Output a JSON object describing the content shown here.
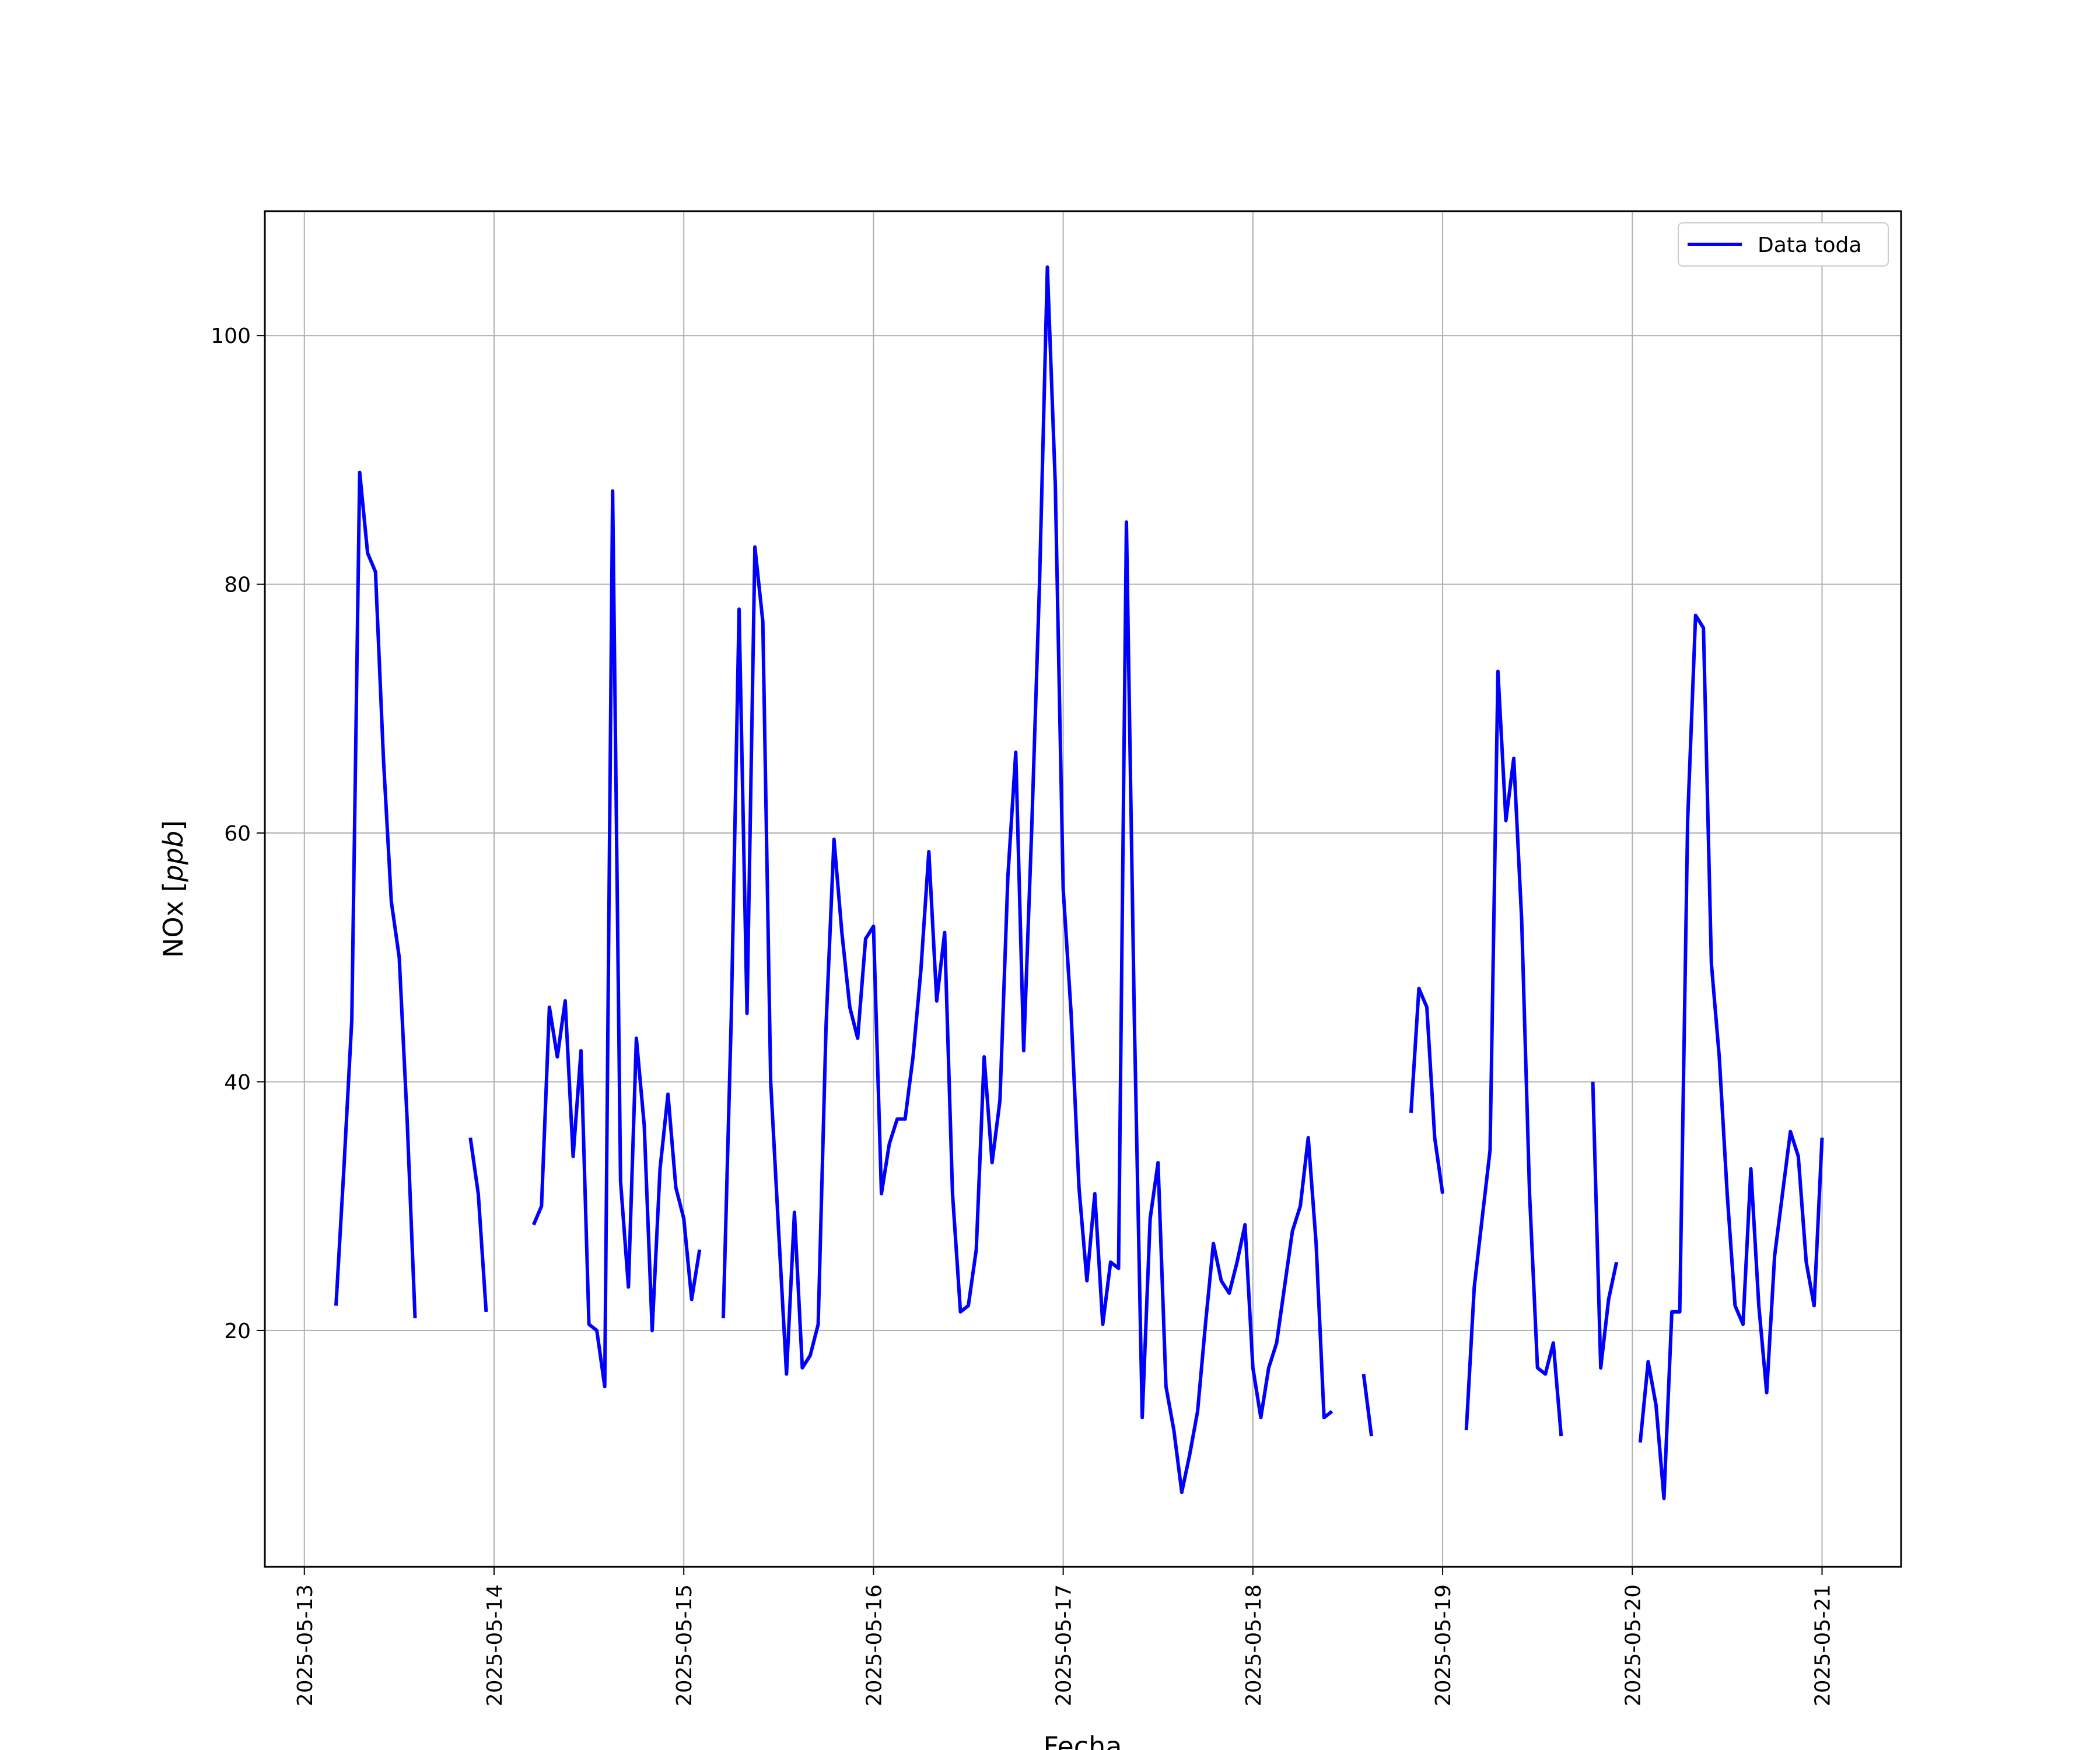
{
  "chart_data": {
    "type": "line",
    "xlabel": "Fecha",
    "ylabel": "NOx [ppb]",
    "ylabel_prefix": "NOx [",
    "ylabel_unit": "ppb",
    "ylabel_suffix": "]",
    "x_range": [
      "2025-05-12T19:00",
      "2025-05-21T10:00"
    ],
    "ylim": [
      1,
      110
    ],
    "yticks": [
      20,
      40,
      60,
      80,
      100
    ],
    "ytick_labels": [
      "20",
      "40",
      "60",
      "80",
      "100"
    ],
    "xtick_labels": [
      "2025-05-13",
      "2025-05-14",
      "2025-05-15",
      "2025-05-16",
      "2025-05-17",
      "2025-05-18",
      "2025-05-19",
      "2025-05-20",
      "2025-05-21"
    ],
    "grid": true,
    "legend_position": "top-right",
    "series": [
      {
        "name": "Data toda",
        "color": "#0000ff",
        "segments": [
          [
            [
              "2025-05-13T04:00",
              22.0
            ],
            [
              "2025-05-13T05:00",
              33
            ],
            [
              "2025-05-13T06:00",
              45
            ],
            [
              "2025-05-13T07:00",
              89
            ],
            [
              "2025-05-13T08:00",
              82.5
            ],
            [
              "2025-05-13T09:00",
              81
            ],
            [
              "2025-05-13T10:00",
              66
            ],
            [
              "2025-05-13T11:00",
              54.5
            ],
            [
              "2025-05-13T12:00",
              50
            ],
            [
              "2025-05-13T13:00",
              37
            ],
            [
              "2025-05-13T14:00",
              21
            ]
          ],
          [
            [
              "2025-05-13T21:00",
              35.5
            ],
            [
              "2025-05-13T22:00",
              31
            ],
            [
              "2025-05-13T23:00",
              21.5
            ]
          ],
          [
            [
              "2025-05-14T05:00",
              28.5
            ],
            [
              "2025-05-14T06:00",
              30
            ],
            [
              "2025-05-14T07:00",
              46
            ],
            [
              "2025-05-14T08:00",
              42
            ],
            [
              "2025-05-14T09:00",
              46.5
            ],
            [
              "2025-05-14T10:00",
              34
            ],
            [
              "2025-05-14T11:00",
              42.5
            ],
            [
              "2025-05-14T12:00",
              20.5
            ],
            [
              "2025-05-14T13:00",
              20
            ],
            [
              "2025-05-14T14:00",
              15.5
            ],
            [
              "2025-05-14T15:00",
              87.5
            ],
            [
              "2025-05-14T16:00",
              32
            ],
            [
              "2025-05-14T17:00",
              23.5
            ],
            [
              "2025-05-14T18:00",
              43.5
            ],
            [
              "2025-05-14T19:00",
              36.5
            ],
            [
              "2025-05-14T20:00",
              20
            ],
            [
              "2025-05-14T21:00",
              33
            ],
            [
              "2025-05-14T22:00",
              39
            ],
            [
              "2025-05-14T23:00",
              31.5
            ],
            [
              "2025-05-15T00:00",
              29
            ],
            [
              "2025-05-15T01:00",
              22.5
            ],
            [
              "2025-05-15T02:00",
              26.5
            ]
          ],
          [
            [
              "2025-05-15T05:00",
              21
            ],
            [
              "2025-05-15T06:00",
              45
            ],
            [
              "2025-05-15T07:00",
              78
            ],
            [
              "2025-05-15T08:00",
              45.5
            ],
            [
              "2025-05-15T09:00",
              83
            ],
            [
              "2025-05-15T10:00",
              77
            ],
            [
              "2025-05-15T11:00",
              40
            ],
            [
              "2025-05-15T12:00",
              28
            ],
            [
              "2025-05-15T13:00",
              16.5
            ],
            [
              "2025-05-15T14:00",
              29.5
            ],
            [
              "2025-05-15T15:00",
              17
            ],
            [
              "2025-05-15T16:00",
              18
            ],
            [
              "2025-05-15T17:00",
              20.5
            ],
            [
              "2025-05-15T18:00",
              44.5
            ],
            [
              "2025-05-15T19:00",
              59.5
            ],
            [
              "2025-05-15T20:00",
              52
            ],
            [
              "2025-05-15T21:00",
              46
            ],
            [
              "2025-05-15T22:00",
              43.5
            ],
            [
              "2025-05-15T23:00",
              51.5
            ],
            [
              "2025-05-16T00:00",
              52.5
            ],
            [
              "2025-05-16T01:00",
              31
            ],
            [
              "2025-05-16T02:00",
              35
            ],
            [
              "2025-05-16T03:00",
              37
            ],
            [
              "2025-05-16T04:00",
              37
            ],
            [
              "2025-05-16T05:00",
              42
            ],
            [
              "2025-05-16T06:00",
              49
            ],
            [
              "2025-05-16T07:00",
              58.5
            ],
            [
              "2025-05-16T08:00",
              46.5
            ],
            [
              "2025-05-16T09:00",
              52
            ],
            [
              "2025-05-16T10:00",
              31
            ],
            [
              "2025-05-16T11:00",
              21.5
            ],
            [
              "2025-05-16T12:00",
              22
            ],
            [
              "2025-05-16T13:00",
              26.5
            ],
            [
              "2025-05-16T14:00",
              42
            ],
            [
              "2025-05-16T15:00",
              33.5
            ],
            [
              "2025-05-16T16:00",
              38.5
            ],
            [
              "2025-05-16T17:00",
              56.5
            ],
            [
              "2025-05-16T18:00",
              66.5
            ],
            [
              "2025-05-16T19:00",
              42.5
            ],
            [
              "2025-05-16T20:00",
              60
            ],
            [
              "2025-05-16T21:00",
              80
            ],
            [
              "2025-05-16T22:00",
              105.5
            ],
            [
              "2025-05-16T23:00",
              88
            ],
            [
              "2025-05-17T00:00",
              55.5
            ],
            [
              "2025-05-17T01:00",
              45.5
            ],
            [
              "2025-05-17T02:00",
              31.5
            ],
            [
              "2025-05-17T03:00",
              24
            ],
            [
              "2025-05-17T04:00",
              31
            ],
            [
              "2025-05-17T05:00",
              20.5
            ],
            [
              "2025-05-17T06:00",
              25.5
            ],
            [
              "2025-05-17T07:00",
              25
            ],
            [
              "2025-05-17T08:00",
              85
            ],
            [
              "2025-05-17T09:00",
              45
            ],
            [
              "2025-05-17T10:00",
              13
            ],
            [
              "2025-05-17T11:00",
              29
            ],
            [
              "2025-05-17T12:00",
              33.5
            ],
            [
              "2025-05-17T13:00",
              15.5
            ],
            [
              "2025-05-17T14:00",
              12
            ],
            [
              "2025-05-17T15:00",
              7
            ],
            [
              "2025-05-17T16:00",
              10
            ],
            [
              "2025-05-17T17:00",
              13.5
            ],
            [
              "2025-05-17T18:00",
              20.5
            ],
            [
              "2025-05-17T19:00",
              27
            ],
            [
              "2025-05-17T20:00",
              24
            ],
            [
              "2025-05-17T21:00",
              23
            ],
            [
              "2025-05-17T22:00",
              25.5
            ],
            [
              "2025-05-17T23:00",
              28.5
            ],
            [
              "2025-05-18T00:00",
              17
            ],
            [
              "2025-05-18T01:00",
              13
            ],
            [
              "2025-05-18T02:00",
              17
            ],
            [
              "2025-05-18T03:00",
              19
            ],
            [
              "2025-05-18T04:00",
              23.5
            ],
            [
              "2025-05-18T05:00",
              28
            ],
            [
              "2025-05-18T06:00",
              30
            ],
            [
              "2025-05-18T07:00",
              35.5
            ],
            [
              "2025-05-18T08:00",
              27
            ],
            [
              "2025-05-18T09:00",
              13
            ],
            [
              "2025-05-18T10:00",
              13.5
            ]
          ],
          [
            [
              "2025-05-18T14:00",
              16.5
            ],
            [
              "2025-05-18T15:00",
              11.5
            ]
          ],
          [
            [
              "2025-05-18T20:00",
              37.5
            ],
            [
              "2025-05-18T21:00",
              47.5
            ],
            [
              "2025-05-18T22:00",
              46
            ],
            [
              "2025-05-18T23:00",
              35.5
            ],
            [
              "2025-05-19T00:00",
              31
            ]
          ],
          [
            [
              "2025-05-19T03:00",
              12
            ],
            [
              "2025-05-19T04:00",
              23.5
            ],
            [
              "2025-05-19T05:00",
              29
            ],
            [
              "2025-05-19T06:00",
              34.5
            ],
            [
              "2025-05-19T07:00",
              73
            ],
            [
              "2025-05-19T08:00",
              61
            ],
            [
              "2025-05-19T09:00",
              66
            ],
            [
              "2025-05-19T10:00",
              53
            ],
            [
              "2025-05-19T11:00",
              31
            ],
            [
              "2025-05-19T12:00",
              17
            ],
            [
              "2025-05-19T13:00",
              16.5
            ],
            [
              "2025-05-19T14:00",
              19
            ],
            [
              "2025-05-19T15:00",
              11.5
            ]
          ],
          [
            [
              "2025-05-19T19:00",
              40
            ],
            [
              "2025-05-19T20:00",
              17
            ],
            [
              "2025-05-19T21:00",
              22.5
            ],
            [
              "2025-05-19T22:00",
              25.5
            ]
          ],
          [
            [
              "2025-05-20T01:00",
              11
            ],
            [
              "2025-05-20T02:00",
              17.5
            ],
            [
              "2025-05-20T03:00",
              14
            ],
            [
              "2025-05-20T04:00",
              6.5
            ],
            [
              "2025-05-20T05:00",
              21.5
            ],
            [
              "2025-05-20T06:00",
              21.5
            ],
            [
              "2025-05-20T07:00",
              61
            ],
            [
              "2025-05-20T08:00",
              77.5
            ],
            [
              "2025-05-20T09:00",
              76.5
            ],
            [
              "2025-05-20T10:00",
              49.5
            ],
            [
              "2025-05-20T11:00",
              42
            ],
            [
              "2025-05-20T12:00",
              31
            ],
            [
              "2025-05-20T13:00",
              22
            ],
            [
              "2025-05-20T14:00",
              20.5
            ],
            [
              "2025-05-20T15:00",
              33
            ],
            [
              "2025-05-20T16:00",
              22
            ],
            [
              "2025-05-20T17:00",
              15
            ],
            [
              "2025-05-20T18:00",
              26
            ],
            [
              "2025-05-20T19:00",
              31
            ],
            [
              "2025-05-20T20:00",
              36
            ],
            [
              "2025-05-20T21:00",
              34
            ],
            [
              "2025-05-20T22:00",
              25.5
            ],
            [
              "2025-05-20T23:00",
              22
            ],
            [
              "2025-05-21T00:00",
              35.5
            ]
          ]
        ]
      }
    ]
  }
}
